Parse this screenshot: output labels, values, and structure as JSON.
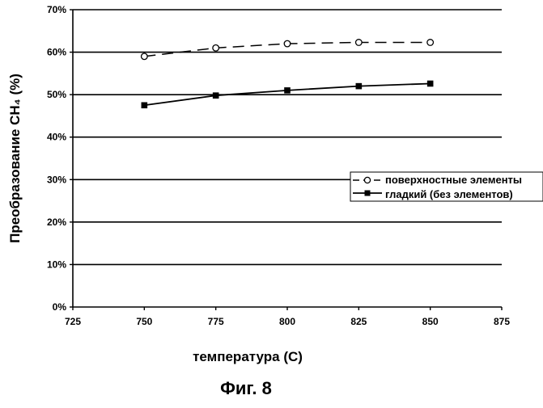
{
  "chart_data": {
    "type": "line",
    "xlabel": "температура (С)",
    "ylabel": "Преобразование СН₄ (%)",
    "caption": "Фиг. 8",
    "xlim": [
      725,
      875
    ],
    "ylim": [
      0,
      70
    ],
    "x_ticks": [
      "725",
      "750",
      "775",
      "800",
      "825",
      "850",
      "875"
    ],
    "y_ticks": [
      "0%",
      "10%",
      "20%",
      "30%",
      "40%",
      "50%",
      "60%",
      "70%"
    ],
    "grid": true,
    "legend_position": "right",
    "series": [
      {
        "name": "поверхностные элементы",
        "marker": "circle-open",
        "line": "dashed",
        "x": [
          750,
          775,
          800,
          825,
          850
        ],
        "values": [
          59,
          61,
          62,
          62.3,
          62.3
        ]
      },
      {
        "name": "гладкий (без элементов)",
        "marker": "square-filled",
        "line": "solid",
        "x": [
          750,
          775,
          800,
          825,
          850
        ],
        "values": [
          47.5,
          49.8,
          51,
          52,
          52.6
        ]
      }
    ]
  }
}
